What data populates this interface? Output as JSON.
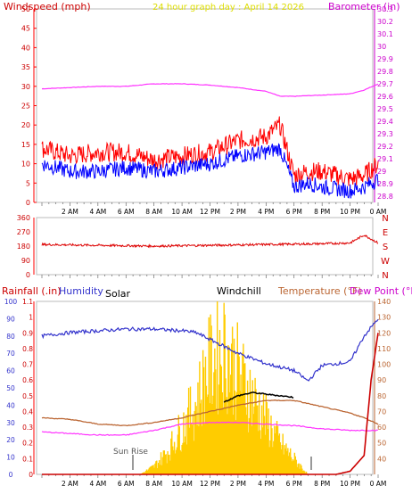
{
  "panels": {
    "top": {
      "title_left": "Windspeed (mph)",
      "title_center": "24 hour graph day : April 14 2026",
      "title_right": "Barometer (in)"
    },
    "bottom": {
      "label_rainfall": "Rainfall (.in)",
      "label_humidity": "Humidity",
      "label_solar": "Solar",
      "label_windchill": "Windchill",
      "label_temperature": "Temperature (°F)",
      "label_dewpoint": "Dew Point (°F)",
      "annotation_sunrise": "Sun Rise"
    }
  },
  "colors": {
    "wind_gust": "#ff0000",
    "wind_avg": "#0000ff",
    "barometer": "#ff33ff",
    "direction": "#dd0000",
    "humidity": "#3333cc",
    "temperature": "#bb6633",
    "dewpoint": "#ff33ff",
    "windchill": "#000000",
    "rain": "#cc0000",
    "solar": "#ffcc00",
    "axis_left": "#ff0000",
    "axis_right": "#cc00cc",
    "axis_text": "#cc0000",
    "temp_axis_text": "#bb6633"
  },
  "chart_data": [
    {
      "type": "line",
      "x_ticks": [
        "2 AM",
        "4 AM",
        "6 AM",
        "8 AM",
        "10 AM",
        "12 PM",
        "2 PM",
        "4 PM",
        "6 PM",
        "8 PM",
        "10 PM",
        "0 AM"
      ],
      "left_axis": {
        "label": "Windspeed (mph)",
        "ticks": [
          0,
          5,
          10,
          15,
          20,
          25,
          30,
          35,
          40,
          45,
          50
        ],
        "range": [
          0,
          50
        ]
      },
      "right_axis": {
        "label": "Barometer (in)",
        "ticks": [
          28.8,
          28.9,
          29,
          29.1,
          29.2,
          29.3,
          29.4,
          29.5,
          29.6,
          29.7,
          29.8,
          29.9,
          30,
          30.1,
          30.2,
          30.3
        ],
        "range": [
          28.75,
          30.3
        ]
      },
      "series": [
        {
          "name": "Windspeed",
          "x": [
            0,
            2,
            4,
            6,
            8,
            10,
            12,
            14,
            16,
            17,
            18,
            19,
            20,
            22,
            23,
            24
          ],
          "values": [
            14,
            12,
            13,
            13,
            11,
            12,
            13,
            16,
            17,
            20,
            7,
            8,
            8,
            6,
            7,
            10
          ]
        },
        {
          "name": "Windspeed avg",
          "x": [
            0,
            2,
            4,
            6,
            8,
            10,
            12,
            14,
            16,
            17,
            18,
            19,
            20,
            22,
            23,
            24
          ],
          "values": [
            10,
            8,
            8,
            9,
            8,
            9,
            10,
            12,
            13,
            14,
            4,
            5,
            4,
            3,
            4,
            6
          ]
        },
        {
          "name": "Barometer",
          "x": [
            0,
            2,
            4,
            6,
            8,
            10,
            12,
            14,
            16,
            17,
            18,
            20,
            22,
            23,
            24
          ],
          "values": [
            29.66,
            29.67,
            29.68,
            29.68,
            29.7,
            29.7,
            29.69,
            29.67,
            29.64,
            29.6,
            29.6,
            29.61,
            29.62,
            29.65,
            29.7
          ]
        }
      ]
    },
    {
      "type": "line",
      "x_ticks": [
        "2 AM",
        "4 AM",
        "6 AM",
        "8 AM",
        "10 AM",
        "12 PM",
        "2 PM",
        "4 PM",
        "6 PM",
        "8 PM",
        "10 PM",
        "0 AM"
      ],
      "right_ticks": [
        "N",
        "W",
        "S",
        "E",
        "N"
      ],
      "left_axis": {
        "ticks": [
          0,
          90,
          180,
          270,
          360
        ],
        "range": [
          0,
          360
        ]
      },
      "series": [
        {
          "name": "Wind direction",
          "x": [
            0,
            4,
            8,
            12,
            16,
            20,
            22,
            23,
            24
          ],
          "values": [
            190,
            185,
            180,
            185,
            190,
            195,
            200,
            250,
            200
          ]
        }
      ]
    },
    {
      "type": "line",
      "x_ticks": [
        "2 AM",
        "4 AM",
        "6 AM",
        "8 AM",
        "10 AM",
        "12 PM",
        "2 PM",
        "4 PM",
        "6 PM",
        "8 PM",
        "10 PM",
        "0 AM"
      ],
      "left_axis": {
        "label": "Humidity",
        "ticks": [
          0,
          10,
          20,
          30,
          40,
          50,
          60,
          70,
          80,
          90,
          100
        ],
        "range": [
          0,
          100
        ]
      },
      "rain_axis": {
        "label": "Rainfall (.in)",
        "ticks": [
          0,
          0.1,
          0.2,
          0.3,
          0.4,
          0.5,
          0.6,
          0.7,
          0.8,
          0.9,
          1,
          1.1
        ],
        "range": [
          0,
          1.1
        ]
      },
      "right_axis": {
        "label": "Temperature (°F)",
        "ticks": [
          40,
          50,
          60,
          70,
          80,
          90,
          100,
          110,
          120,
          130,
          140
        ],
        "range": [
          30,
          140
        ]
      },
      "series": [
        {
          "name": "Humidity",
          "x": [
            0,
            2,
            4,
            6,
            8,
            10,
            11,
            12,
            14,
            16,
            18,
            19,
            20,
            22,
            23,
            24
          ],
          "values": [
            80,
            82,
            83,
            84,
            84,
            83,
            82,
            78,
            70,
            64,
            60,
            54,
            63,
            65,
            80,
            90
          ]
        },
        {
          "name": "Temperature",
          "x": [
            0,
            2,
            4,
            6,
            8,
            10,
            12,
            14,
            16,
            18,
            20,
            22,
            23,
            24
          ],
          "values": [
            66,
            65,
            62,
            61,
            63,
            66,
            70,
            74,
            77,
            77,
            73,
            69,
            66,
            62
          ]
        },
        {
          "name": "Dew Point",
          "x": [
            0,
            2,
            4,
            6,
            8,
            10,
            12,
            14,
            16,
            18,
            20,
            22,
            24
          ],
          "values": [
            57,
            56,
            55,
            55,
            58,
            62,
            63,
            63,
            62,
            61,
            59,
            58,
            58
          ]
        },
        {
          "name": "Windchill",
          "x": [
            13,
            14,
            15,
            16,
            17,
            18
          ],
          "values": [
            76,
            80,
            82,
            81,
            80,
            79
          ]
        },
        {
          "name": "Solar",
          "x": [
            7,
            8,
            9,
            10,
            11,
            12,
            13,
            14,
            15,
            16,
            17,
            18,
            19
          ],
          "values": [
            0,
            5,
            15,
            30,
            45,
            70,
            80,
            65,
            50,
            35,
            20,
            10,
            0
          ]
        },
        {
          "name": "Rainfall",
          "x": [
            0,
            21,
            22,
            23,
            23.5,
            24
          ],
          "values": [
            0,
            0,
            0.02,
            0.12,
            0.6,
            0.9
          ]
        }
      ]
    }
  ]
}
